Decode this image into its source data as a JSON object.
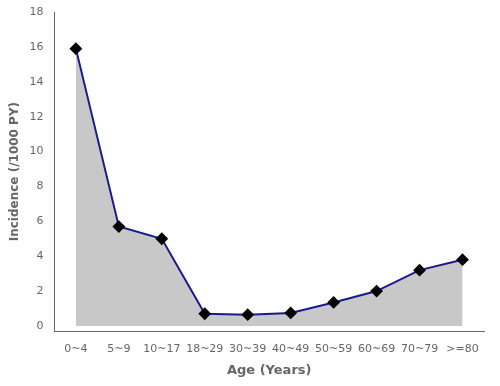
{
  "chart_data": {
    "type": "area",
    "categories": [
      "0~4",
      "5~9",
      "10~17",
      "18~29",
      "30~39",
      "40~49",
      "50~59",
      "60~69",
      "70~79",
      ">=80"
    ],
    "values": [
      15.9,
      5.7,
      5.0,
      0.7,
      0.65,
      0.75,
      1.35,
      2.0,
      3.2,
      3.8
    ],
    "color": "#1a1a8c",
    "marker": "diamond",
    "xlabel": "Age (Years)",
    "ylabel": "Incidence (/1000 PY)",
    "ylim": [
      -0.3,
      18
    ],
    "yticks": [
      0,
      2,
      4,
      6,
      8,
      10,
      12,
      14,
      16,
      18
    ],
    "grid": false
  }
}
